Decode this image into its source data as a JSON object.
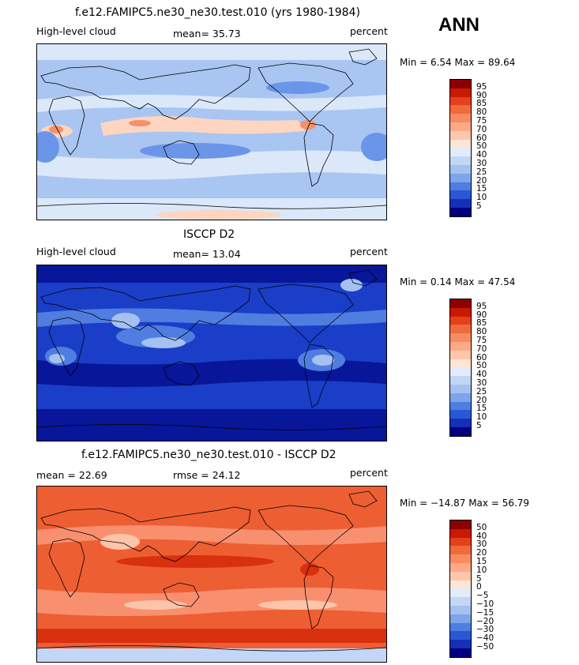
{
  "season": "ANN",
  "panels": [
    {
      "title": "f.e12.FAMIPC5.ne30_ne30.test.010 (yrs 1980-1984)",
      "left_label": "High-level cloud",
      "center_label": "mean=  35.73",
      "units": "percent",
      "minmax": "Min =   6.54 Max =  89.64",
      "colorbar_labels": [
        "95",
        "90",
        "85",
        "80",
        "75",
        "70",
        "60",
        "50",
        "40",
        "30",
        "25",
        "20",
        "15",
        "10",
        "5"
      ],
      "colorbar_colors": [
        "#8b0000",
        "#c81a00",
        "#e3401c",
        "#f06a3c",
        "#f78b61",
        "#fca987",
        "#fdc7ab",
        "#fde6d6",
        "#e2ecfb",
        "#c2d7f6",
        "#a5c1f1",
        "#7ea4e9",
        "#4f7de0",
        "#2a58d4",
        "#1430b8",
        "#00007f"
      ],
      "field_colors": {
        "background": "#a9c5f2",
        "light": "#dbe8fa",
        "warm": "#fdd5c0",
        "hot": "#f4906a",
        "dark": "#6b95e8"
      }
    },
    {
      "title": "ISCCP D2",
      "left_label": "High-level cloud",
      "center_label": "mean=  13.04",
      "units": "percent",
      "minmax": "Min =   0.14 Max =  47.54",
      "colorbar_labels": [
        "95",
        "90",
        "85",
        "80",
        "75",
        "70",
        "60",
        "50",
        "40",
        "30",
        "25",
        "20",
        "15",
        "10",
        "5"
      ],
      "colorbar_colors": [
        "#8b0000",
        "#c81a00",
        "#e3401c",
        "#f06a3c",
        "#f78b61",
        "#fca987",
        "#fdc7ab",
        "#fde6d6",
        "#e2ecfb",
        "#c2d7f6",
        "#a5c1f1",
        "#7ea4e9",
        "#4f7de0",
        "#2a58d4",
        "#1430b8",
        "#00007f"
      ],
      "field_colors": {
        "background": "#1a3ec8",
        "light": "#4f7de0",
        "pale": "#a5c1f1",
        "dark": "#08169a"
      }
    },
    {
      "title": "f.e12.FAMIPC5.ne30_ne30.test.010 - ISCCP D2",
      "left_label": "mean =  22.69",
      "center_label": "rmse =  24.12",
      "units": "percent",
      "minmax": "Min = −14.87 Max =  56.79",
      "colorbar_labels": [
        "50",
        "40",
        "30",
        "20",
        "15",
        "10",
        "5",
        "0",
        "−5",
        "−10",
        "−15",
        "−20",
        "−30",
        "−40",
        "−50"
      ],
      "colorbar_colors": [
        "#8b0000",
        "#c81a00",
        "#e3401c",
        "#f06a3c",
        "#f78b61",
        "#fca987",
        "#fdc7ab",
        "#fde6d6",
        "#e2ecfb",
        "#c2d7f6",
        "#a5c1f1",
        "#7ea4e9",
        "#4f7de0",
        "#2a58d4",
        "#1430b8",
        "#00007f"
      ],
      "field_colors": {
        "background": "#ee5e33",
        "light": "#f89070",
        "pale": "#fcc4a8",
        "dark": "#d9300f",
        "blue": "#c2d7f6"
      }
    }
  ]
}
